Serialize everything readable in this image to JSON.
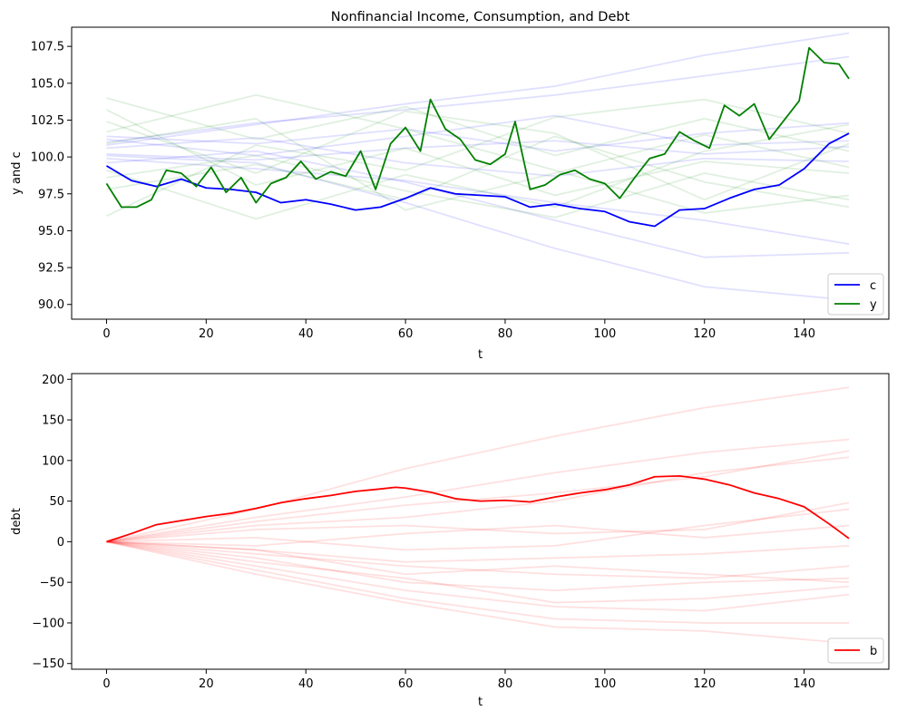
{
  "chart_data": [
    {
      "type": "line",
      "title": "Nonfinancial Income, Consumption, and Debt",
      "xlabel": "t",
      "ylabel": "y and c",
      "xlim": [
        -7,
        157
      ],
      "ylim": [
        89,
        108.8
      ],
      "xticks": [
        0,
        20,
        40,
        60,
        80,
        100,
        120,
        140
      ],
      "yticks": [
        90.0,
        92.5,
        95.0,
        97.5,
        100.0,
        102.5,
        105.0,
        107.5
      ],
      "ytick_labels": [
        "90.0",
        "92.5",
        "95.0",
        "97.5",
        "100.0",
        "102.5",
        "105.0",
        "107.5"
      ],
      "legend_position": "lower-right",
      "series": [
        {
          "name": "c",
          "color": "#0000ff",
          "x": [
            0,
            5,
            10,
            15,
            20,
            25,
            30,
            35,
            40,
            45,
            50,
            55,
            60,
            65,
            70,
            75,
            80,
            85,
            90,
            95,
            100,
            105,
            110,
            115,
            120,
            125,
            130,
            135,
            140,
            145,
            149
          ],
          "y": [
            99.4,
            98.4,
            98.0,
            98.5,
            97.9,
            97.8,
            97.6,
            96.9,
            97.1,
            96.8,
            96.4,
            96.6,
            97.2,
            97.9,
            97.5,
            97.4,
            97.3,
            96.6,
            96.8,
            96.5,
            96.3,
            95.6,
            95.3,
            96.4,
            96.5,
            97.2,
            97.8,
            98.1,
            99.2,
            100.9,
            101.6
          ]
        },
        {
          "name": "y",
          "color": "#008000",
          "x": [
            0,
            3,
            6,
            9,
            12,
            15,
            18,
            21,
            24,
            27,
            30,
            33,
            36,
            39,
            42,
            45,
            48,
            51,
            54,
            57,
            60,
            63,
            65,
            68,
            71,
            74,
            77,
            80,
            82,
            85,
            88,
            91,
            94,
            97,
            100,
            103,
            106,
            109,
            112,
            115,
            118,
            121,
            124,
            127,
            130,
            133,
            136,
            139,
            141,
            144,
            147,
            149
          ],
          "y": [
            98.2,
            96.6,
            96.6,
            97.1,
            99.1,
            98.9,
            98.0,
            99.3,
            97.6,
            98.6,
            96.9,
            98.2,
            98.6,
            99.7,
            98.5,
            99.0,
            98.7,
            100.4,
            97.8,
            100.9,
            102.0,
            100.4,
            103.9,
            101.9,
            101.2,
            99.8,
            99.5,
            100.2,
            102.4,
            97.8,
            98.1,
            98.8,
            99.1,
            98.5,
            98.2,
            97.2,
            98.6,
            99.9,
            100.2,
            101.7,
            101.1,
            100.6,
            103.5,
            102.8,
            103.6,
            101.2,
            102.5,
            103.8,
            107.4,
            106.4,
            106.3,
            105.3
          ]
        }
      ],
      "background_series": [
        {
          "color": "#0000ff",
          "x": [
            0,
            30,
            60,
            90,
            120,
            149
          ],
          "y": [
            101.4,
            100.9,
            101.9,
            100.4,
            101.6,
            102.3
          ]
        },
        {
          "color": "#0000ff",
          "x": [
            0,
            30,
            60,
            90,
            120,
            149
          ],
          "y": [
            100.2,
            99.8,
            100.6,
            101.1,
            100.2,
            100.7
          ]
        },
        {
          "color": "#0000ff",
          "x": [
            0,
            30,
            60,
            90,
            120,
            149
          ],
          "y": [
            100.6,
            101.3,
            99.6,
            98.7,
            99.9,
            99.7
          ]
        },
        {
          "color": "#0000ff",
          "x": [
            0,
            30,
            60,
            90,
            120,
            149
          ],
          "y": [
            99.9,
            99.2,
            98.4,
            96.9,
            95.7,
            94.1
          ]
        },
        {
          "color": "#0000ff",
          "x": [
            0,
            30,
            60,
            90,
            120,
            149
          ],
          "y": [
            101.0,
            102.3,
            103.2,
            104.2,
            105.5,
            106.8
          ]
        },
        {
          "color": "#0000ff",
          "x": [
            0,
            30,
            60,
            90,
            120,
            149
          ],
          "y": [
            100.1,
            99.6,
            96.9,
            93.8,
            91.2,
            90.3
          ]
        },
        {
          "color": "#0000ff",
          "x": [
            0,
            30,
            60,
            90,
            120,
            149
          ],
          "y": [
            100.8,
            102.2,
            103.6,
            104.8,
            106.9,
            108.4
          ]
        },
        {
          "color": "#0000ff",
          "x": [
            0,
            30,
            60,
            90,
            120,
            149
          ],
          "y": [
            99.6,
            100.4,
            98.3,
            95.7,
            93.2,
            93.5
          ]
        },
        {
          "color": "#0000ff",
          "x": [
            0,
            30,
            60,
            90,
            120,
            149
          ],
          "y": [
            101.2,
            100.1,
            101.4,
            102.8,
            100.8,
            101.1
          ]
        },
        {
          "color": "#008000",
          "x": [
            0,
            30,
            60,
            90,
            120,
            149
          ],
          "y": [
            104.0,
            101.2,
            103.4,
            100.1,
            102.6,
            100.4
          ]
        },
        {
          "color": "#008000",
          "x": [
            0,
            30,
            60,
            90,
            120,
            149
          ],
          "y": [
            97.8,
            99.5,
            97.1,
            101.4,
            98.3,
            96.6
          ]
        },
        {
          "color": "#008000",
          "x": [
            0,
            30,
            60,
            90,
            120,
            149
          ],
          "y": [
            103.2,
            98.1,
            100.6,
            97.4,
            99.7,
            98.9
          ]
        },
        {
          "color": "#008000",
          "x": [
            0,
            30,
            60,
            90,
            120,
            149
          ],
          "y": [
            96.0,
            100.8,
            99.1,
            102.7,
            103.9,
            101.6
          ]
        },
        {
          "color": "#008000",
          "x": [
            0,
            30,
            60,
            90,
            120,
            149
          ],
          "y": [
            101.7,
            104.2,
            101.9,
            99.1,
            96.2,
            97.4
          ]
        },
        {
          "color": "#008000",
          "x": [
            0,
            30,
            60,
            90,
            120,
            149
          ],
          "y": [
            99.1,
            95.8,
            98.8,
            96.6,
            100.4,
            102.2
          ]
        },
        {
          "color": "#008000",
          "x": [
            0,
            30,
            60,
            90,
            120,
            149
          ],
          "y": [
            100.9,
            102.6,
            96.4,
            98.9,
            101.5,
            99.3
          ]
        },
        {
          "color": "#008000",
          "x": [
            0,
            30,
            60,
            90,
            120,
            149
          ],
          "y": [
            102.4,
            98.9,
            103.1,
            101.6,
            97.1,
            100.9
          ]
        },
        {
          "color": "#008000",
          "x": [
            0,
            30,
            60,
            90,
            120,
            149
          ],
          "y": [
            98.6,
            100.1,
            97.7,
            95.9,
            98.9,
            97.1
          ]
        }
      ]
    },
    {
      "type": "line",
      "title": "",
      "xlabel": "t",
      "ylabel": "debt",
      "xlim": [
        -7,
        157
      ],
      "ylim": [
        -157,
        207
      ],
      "xticks": [
        0,
        20,
        40,
        60,
        80,
        100,
        120,
        140
      ],
      "yticks": [
        -150,
        -100,
        -50,
        0,
        50,
        100,
        150,
        200
      ],
      "ytick_labels": [
        "−150",
        "−100",
        "−50",
        "0",
        "50",
        "100",
        "150",
        "200"
      ],
      "legend_position": "lower-right",
      "series": [
        {
          "name": "b",
          "color": "#ff0000",
          "x": [
            0,
            5,
            10,
            15,
            20,
            25,
            30,
            35,
            40,
            45,
            50,
            55,
            58,
            60,
            65,
            70,
            75,
            80,
            85,
            90,
            95,
            100,
            105,
            110,
            115,
            120,
            125,
            130,
            135,
            140,
            145,
            149
          ],
          "y": [
            0,
            10,
            21,
            26,
            31,
            35,
            41,
            48,
            53,
            57,
            62,
            65,
            67,
            66,
            61,
            53,
            50,
            51,
            49,
            55,
            60,
            64,
            70,
            80,
            81,
            77,
            70,
            60,
            53,
            43,
            22,
            4
          ]
        }
      ],
      "background_series": [
        {
          "color": "#ff0000",
          "x": [
            0,
            30,
            60,
            90,
            120,
            149
          ],
          "y": [
            0,
            40,
            90,
            130,
            165,
            190
          ]
        },
        {
          "color": "#ff0000",
          "x": [
            0,
            30,
            60,
            90,
            120,
            149
          ],
          "y": [
            0,
            30,
            55,
            85,
            110,
            126
          ]
        },
        {
          "color": "#ff0000",
          "x": [
            0,
            30,
            60,
            90,
            120,
            149
          ],
          "y": [
            0,
            25,
            45,
            60,
            80,
            112
          ]
        },
        {
          "color": "#ff0000",
          "x": [
            0,
            30,
            60,
            90,
            120,
            149
          ],
          "y": [
            0,
            20,
            30,
            50,
            85,
            104
          ]
        },
        {
          "color": "#ff0000",
          "x": [
            0,
            30,
            60,
            90,
            120,
            149
          ],
          "y": [
            0,
            15,
            20,
            10,
            15,
            48
          ]
        },
        {
          "color": "#ff0000",
          "x": [
            0,
            30,
            60,
            90,
            120,
            149
          ],
          "y": [
            0,
            5,
            -10,
            -5,
            20,
            40
          ]
        },
        {
          "color": "#ff0000",
          "x": [
            0,
            30,
            60,
            90,
            120,
            149
          ],
          "y": [
            0,
            -5,
            10,
            20,
            5,
            20
          ]
        },
        {
          "color": "#ff0000",
          "x": [
            0,
            30,
            60,
            90,
            120,
            149
          ],
          "y": [
            0,
            -10,
            -25,
            -20,
            -15,
            -5
          ]
        },
        {
          "color": "#ff0000",
          "x": [
            0,
            30,
            60,
            90,
            120,
            149
          ],
          "y": [
            0,
            -15,
            -30,
            -40,
            -45,
            -30
          ]
        },
        {
          "color": "#ff0000",
          "x": [
            0,
            30,
            60,
            90,
            120,
            149
          ],
          "y": [
            0,
            -20,
            -50,
            -60,
            -50,
            -45
          ]
        },
        {
          "color": "#ff0000",
          "x": [
            0,
            30,
            60,
            90,
            120,
            149
          ],
          "y": [
            0,
            -25,
            -45,
            -75,
            -70,
            -55
          ]
        },
        {
          "color": "#ff0000",
          "x": [
            0,
            30,
            60,
            90,
            120,
            149
          ],
          "y": [
            0,
            -30,
            -60,
            -80,
            -85,
            -65
          ]
        },
        {
          "color": "#ff0000",
          "x": [
            0,
            30,
            60,
            90,
            120,
            149
          ],
          "y": [
            0,
            -35,
            -70,
            -95,
            -100,
            -100
          ]
        },
        {
          "color": "#ff0000",
          "x": [
            0,
            30,
            60,
            90,
            120,
            149
          ],
          "y": [
            0,
            -40,
            -75,
            -105,
            -110,
            -125
          ]
        },
        {
          "color": "#ff0000",
          "x": [
            0,
            30,
            60,
            90,
            120,
            149
          ],
          "y": [
            0,
            -10,
            -40,
            -30,
            -40,
            -50
          ]
        }
      ]
    }
  ]
}
